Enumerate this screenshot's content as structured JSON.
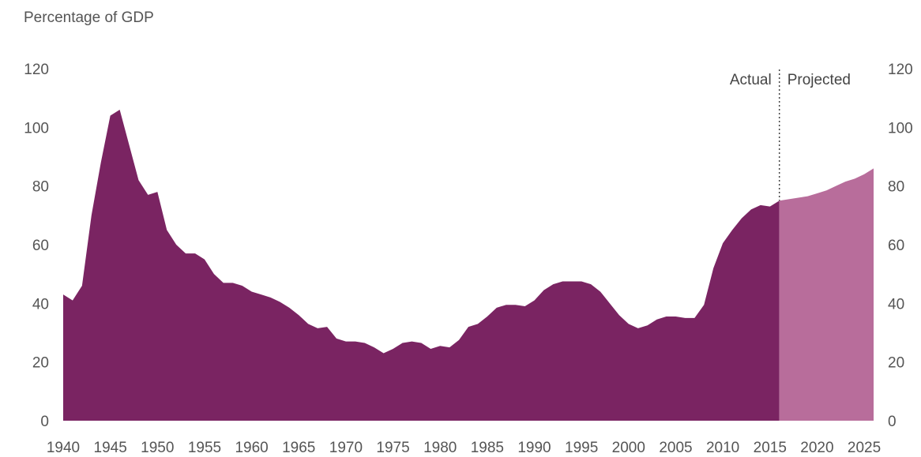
{
  "header": {
    "unit_label": "Percentage of GDP"
  },
  "chart_data": {
    "type": "area",
    "ylabel": "Percentage of GDP",
    "ylim": [
      0,
      120
    ],
    "xlim": [
      1940,
      2026
    ],
    "y_ticks": [
      0,
      20,
      40,
      60,
      80,
      100,
      120
    ],
    "x_ticks": [
      1940,
      1945,
      1950,
      1955,
      1960,
      1965,
      1970,
      1975,
      1980,
      1985,
      1990,
      1995,
      2000,
      2005,
      2010,
      2015,
      2020,
      2025
    ],
    "grid": false,
    "divider_x": 2016,
    "annotations": {
      "actual": "Actual",
      "projected": "Projected"
    },
    "colors": {
      "actual": "#7a2462",
      "projected": "#b86d9b",
      "axis_text": "#555555",
      "divider": "#444444"
    },
    "series": [
      {
        "name": "Actual",
        "x": [
          1940,
          1941,
          1942,
          1943,
          1944,
          1945,
          1946,
          1947,
          1948,
          1949,
          1950,
          1951,
          1952,
          1953,
          1954,
          1955,
          1956,
          1957,
          1958,
          1959,
          1960,
          1961,
          1962,
          1963,
          1964,
          1965,
          1966,
          1967,
          1968,
          1969,
          1970,
          1971,
          1972,
          1973,
          1974,
          1975,
          1976,
          1977,
          1978,
          1979,
          1980,
          1981,
          1982,
          1983,
          1984,
          1985,
          1986,
          1987,
          1988,
          1989,
          1990,
          1991,
          1992,
          1993,
          1994,
          1995,
          1996,
          1997,
          1998,
          1999,
          2000,
          2001,
          2002,
          2003,
          2004,
          2005,
          2006,
          2007,
          2008,
          2009,
          2010,
          2011,
          2012,
          2013,
          2014,
          2015,
          2016
        ],
        "values": [
          43,
          41,
          46,
          70,
          88,
          104,
          106,
          94,
          82,
          77,
          78,
          65,
          60,
          57,
          57,
          55,
          50,
          47,
          47,
          46,
          44,
          43,
          42,
          40.5,
          38.5,
          36,
          33,
          31.5,
          32,
          28,
          27,
          27,
          26.5,
          25,
          23,
          24.5,
          26.5,
          27,
          26.5,
          24.5,
          25.5,
          25,
          27.5,
          32,
          33,
          35.5,
          38.5,
          39.5,
          39.5,
          39,
          41,
          44.5,
          46.5,
          47.5,
          47.5,
          47.5,
          46.5,
          44,
          40,
          36,
          33,
          31.5,
          32.5,
          34.5,
          35.5,
          35.5,
          35,
          35,
          39.5,
          52,
          60.5,
          65,
          69,
          72,
          73.5,
          73,
          75
        ]
      },
      {
        "name": "Projected",
        "x": [
          2016,
          2017,
          2018,
          2019,
          2020,
          2021,
          2022,
          2023,
          2024,
          2025,
          2026
        ],
        "values": [
          75,
          75.5,
          76,
          76.5,
          77.5,
          78.5,
          80,
          81.5,
          82.5,
          84,
          86
        ]
      }
    ]
  }
}
